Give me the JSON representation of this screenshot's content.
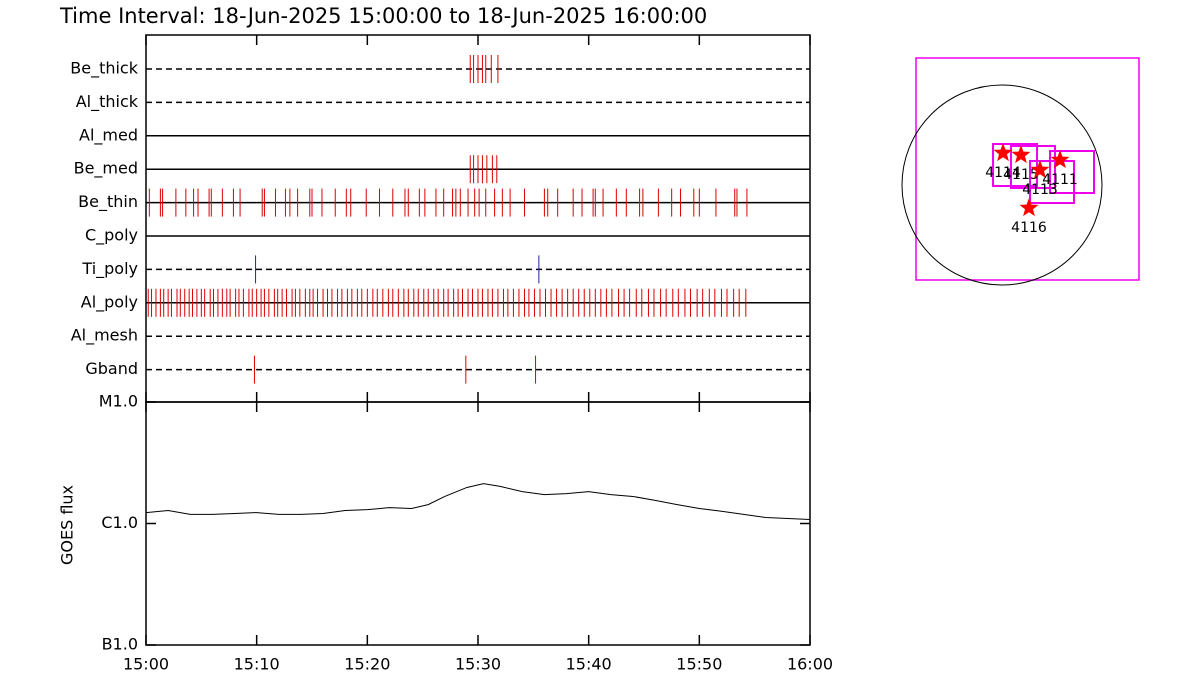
{
  "chart_data": [
    {
      "type": "timeline",
      "title": "Time Interval: 18-Jun-2025 15:00:00 to 18-Jun-2025 16:00:00",
      "xlim": [
        0,
        60
      ],
      "xticks": [
        {
          "value": 0,
          "label": "15:00"
        },
        {
          "value": 10,
          "label": "15:10"
        },
        {
          "value": 20,
          "label": "15:20"
        },
        {
          "value": 30,
          "label": "15:30"
        },
        {
          "value": 40,
          "label": "15:40"
        },
        {
          "value": 50,
          "label": "15:50"
        },
        {
          "value": 60,
          "label": "16:00"
        }
      ],
      "series": [
        {
          "name": "Be_thick",
          "style": "dashed",
          "color": "#dd0000",
          "x": [
            29.3,
            29.6,
            30.0,
            30.4,
            30.7,
            31.2,
            31.8
          ]
        },
        {
          "name": "Al_thick",
          "style": "dashed",
          "color": "#dd0000",
          "x": []
        },
        {
          "name": "Al_med",
          "style": "solid",
          "color": "#dd0000",
          "x": []
        },
        {
          "name": "Be_med",
          "style": "solid",
          "color": "#dd0000",
          "x": [
            29.3,
            29.6,
            30.0,
            30.4,
            30.8,
            31.3,
            31.7
          ]
        },
        {
          "name": "Be_thin",
          "style": "solid",
          "color": "#dd0000",
          "x": [
            0.3,
            1.3,
            1.5,
            2.7,
            3.6,
            4.3,
            4.7,
            5.7,
            5.9,
            6.9,
            7.9,
            8.5,
            10.5,
            10.7,
            11.7,
            12.6,
            13.0,
            13.7,
            14.8,
            15.0,
            15.9,
            17.1,
            18.1,
            18.5,
            19.9,
            21.1,
            22.3,
            23.4,
            23.7,
            24.7,
            25.2,
            26.2,
            26.9,
            27.7,
            28.0,
            28.4,
            29.1,
            29.7,
            30.1,
            30.7,
            31.5,
            32.2,
            32.9,
            34.2,
            36.0,
            36.3,
            37.2,
            38.6,
            39.4,
            40.4,
            40.6,
            41.3,
            42.5,
            43.4,
            44.6,
            44.9,
            46.3,
            47.5,
            48.3,
            49.5,
            50.0,
            51.5,
            53.2,
            53.4,
            54.3
          ]
        },
        {
          "name": "C_poly",
          "style": "solid",
          "color": "#dd0000",
          "x": []
        },
        {
          "name": "Ti_poly",
          "style": "dashed",
          "color": "#2222aa",
          "x": [
            9.9,
            35.5
          ]
        },
        {
          "name": "Al_poly",
          "style": "solid",
          "color": "#dd0000",
          "x": [
            0.2,
            0.5,
            0.9,
            1.3,
            1.6,
            2.0,
            2.3,
            2.8,
            3.1,
            3.5,
            3.9,
            4.2,
            4.6,
            5.0,
            5.3,
            5.8,
            6.1,
            6.5,
            6.9,
            7.3,
            7.6,
            8.1,
            8.4,
            8.8,
            9.3,
            9.6,
            10.0,
            10.4,
            10.7,
            11.1,
            11.6,
            11.9,
            12.3,
            12.7,
            13.2,
            13.5,
            13.9,
            14.4,
            14.8,
            15.1,
            15.5,
            16.0,
            16.4,
            16.8,
            17.3,
            17.7,
            18.2,
            18.6,
            19.1,
            19.5,
            20.0,
            20.5,
            20.9,
            21.4,
            21.9,
            22.3,
            22.8,
            23.3,
            23.7,
            24.2,
            24.6,
            25.1,
            25.5,
            26.0,
            26.4,
            26.9,
            27.3,
            27.8,
            28.2,
            28.6,
            29.1,
            29.5,
            30.0,
            30.4,
            30.9,
            31.3,
            31.8,
            32.3,
            32.7,
            33.2,
            33.7,
            34.2,
            34.6,
            35.1,
            35.6,
            36.1,
            36.6,
            37.1,
            37.6,
            38.1,
            38.6,
            39.1,
            39.6,
            40.1,
            40.6,
            41.1,
            41.6,
            42.1,
            42.7,
            43.2,
            43.7,
            44.3,
            44.8,
            45.4,
            45.9,
            46.5,
            47.0,
            47.6,
            48.1,
            48.7,
            49.2,
            49.8,
            50.3,
            50.9,
            51.4,
            52.0,
            52.5,
            53.1,
            53.6,
            54.2
          ]
        },
        {
          "name": "Al_mesh",
          "style": "dashed",
          "color": "#dd0000",
          "x": []
        },
        {
          "name": "Gband",
          "style": "dashed",
          "color": "#dd0000",
          "x": [
            9.8,
            28.9,
            35.2
          ]
        }
      ]
    },
    {
      "type": "line",
      "y_label": "GOES flux",
      "log_scale": true,
      "color": "#000000",
      "xlim": [
        0,
        60
      ],
      "xticks": [
        {
          "value": 0,
          "label": "15:00"
        },
        {
          "value": 10,
          "label": "15:10"
        },
        {
          "value": 20,
          "label": "15:20"
        },
        {
          "value": 30,
          "label": "15:30"
        },
        {
          "value": 40,
          "label": "15:40"
        },
        {
          "value": 50,
          "label": "15:50"
        },
        {
          "value": 60,
          "label": "16:00"
        }
      ],
      "ylim": [
        1e-07,
        1e-05
      ],
      "yticks": [
        {
          "value": 1e-05,
          "label": "M1.0"
        },
        {
          "value": 1e-06,
          "label": "C1.0"
        },
        {
          "value": 1e-07,
          "label": "B1.0"
        }
      ],
      "x": [
        0,
        2,
        4,
        6,
        8,
        10,
        12,
        14,
        16,
        18,
        20,
        22,
        24,
        25.5,
        27,
        29,
        30.5,
        32,
        34,
        36,
        38,
        40,
        42,
        44,
        46,
        48,
        50,
        52,
        54,
        56,
        58,
        60
      ],
      "values": [
        1.23e-06,
        1.28e-06,
        1.19e-06,
        1.19e-06,
        1.21e-06,
        1.23e-06,
        1.19e-06,
        1.19e-06,
        1.21e-06,
        1.28e-06,
        1.3e-06,
        1.35e-06,
        1.33e-06,
        1.43e-06,
        1.67e-06,
        1.98e-06,
        2.13e-06,
        2.02e-06,
        1.83e-06,
        1.73e-06,
        1.76e-06,
        1.83e-06,
        1.73e-06,
        1.67e-06,
        1.55e-06,
        1.43e-06,
        1.33e-06,
        1.26e-06,
        1.19e-06,
        1.12e-06,
        1.1e-06,
        1.08e-06
      ]
    },
    {
      "type": "map",
      "points": [
        {
          "label": "4114",
          "x": 10,
          "y": 307
        },
        {
          "label": "4115",
          "x": 182,
          "y": 288
        },
        {
          "label": "4113",
          "x": 365,
          "y": 144
        },
        {
          "label": "4111",
          "x": 557,
          "y": 240
        },
        {
          "label": "4116",
          "x": 259,
          "y": -221
        }
      ]
    }
  ]
}
